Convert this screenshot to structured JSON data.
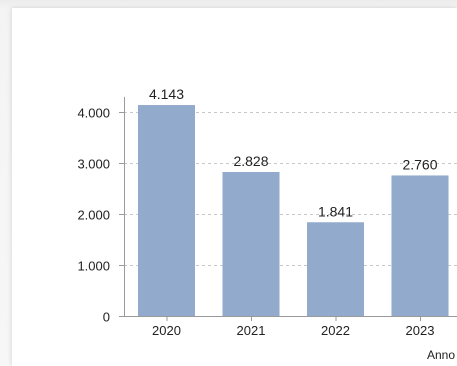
{
  "chart_data": {
    "type": "bar",
    "categories": [
      "2020",
      "2021",
      "2022",
      "2023"
    ],
    "values": [
      4143,
      2828,
      1841,
      2760
    ],
    "value_labels": [
      "4.143",
      "2.828",
      "1.841",
      "2.760"
    ],
    "xlabel": "Anno",
    "ylabel": "",
    "ylim": [
      0,
      4500
    ],
    "yticks": [
      {
        "value": 0,
        "label": "0"
      },
      {
        "value": 1000,
        "label": "1.000"
      },
      {
        "value": 2000,
        "label": "2.000"
      },
      {
        "value": 3000,
        "label": "3.000"
      },
      {
        "value": 4000,
        "label": "4.000"
      }
    ],
    "grid": true,
    "colors": {
      "bar": "#92aacc",
      "grid": "#c8c8c8",
      "axis": "#9a9a9a",
      "text": "#222222"
    }
  }
}
